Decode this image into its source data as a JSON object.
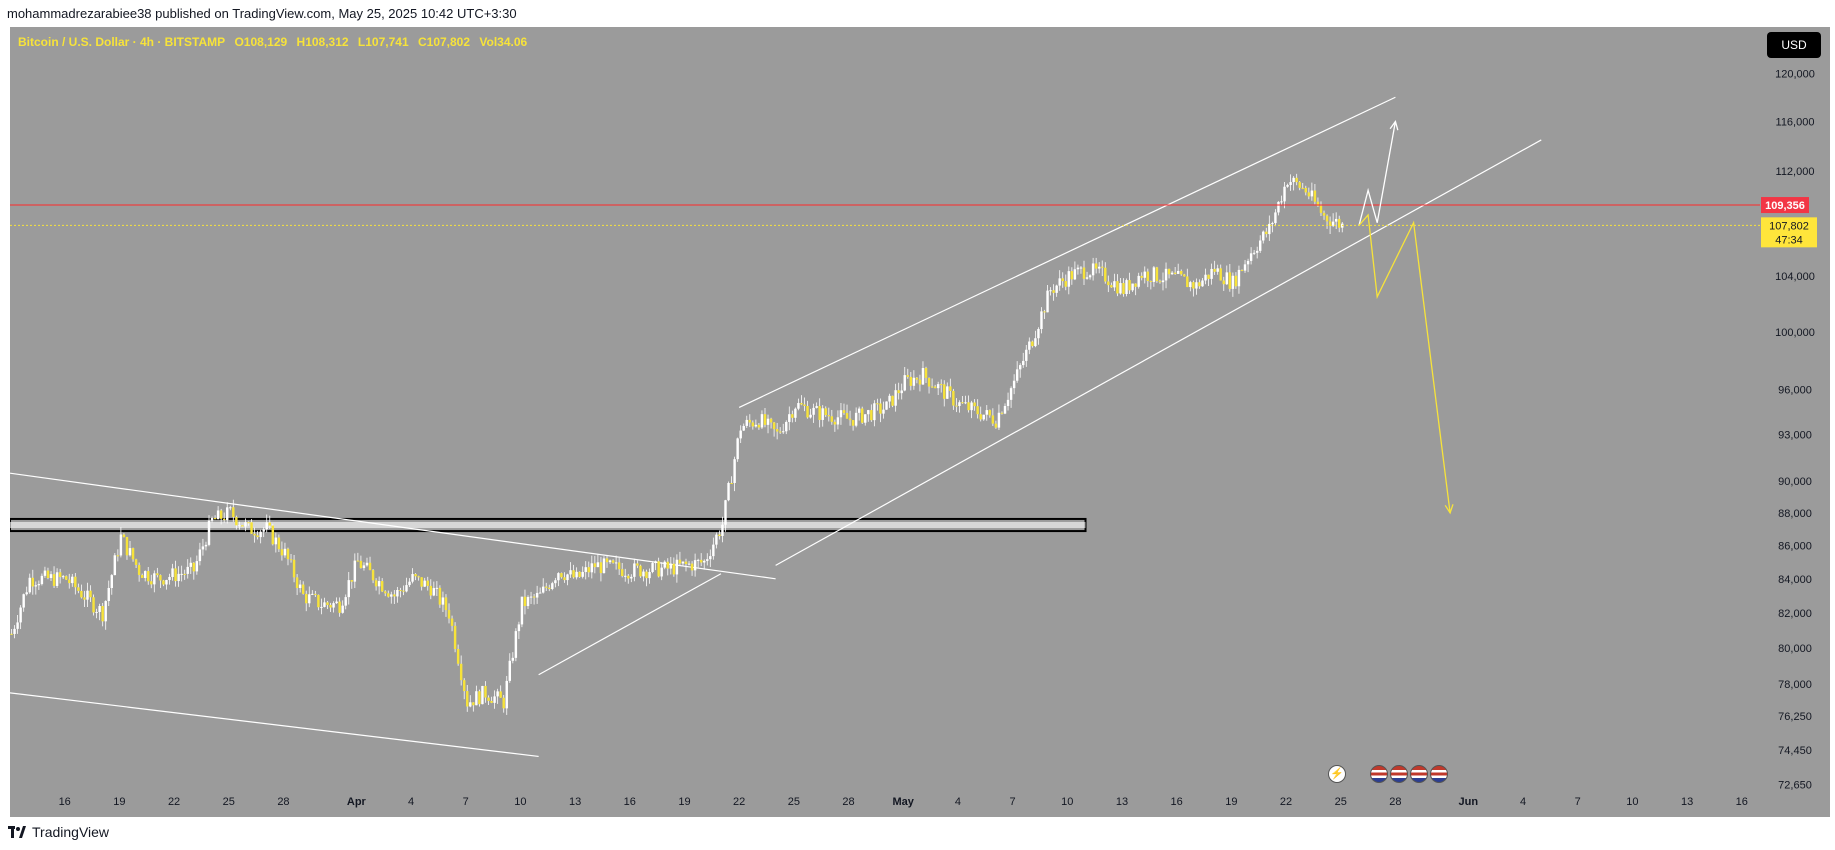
{
  "header": {
    "published": "mohammadrezarabiee38 published on TradingView.com, May 25, 2025 10:42 UTC+3:30"
  },
  "legend": {
    "symbol": "Bitcoin / U.S. Dollar · 4h · BITSTAMP",
    "open": "O108,129",
    "high": "H108,312",
    "low": "L107,741",
    "close": "C107,802",
    "vol": "Vol34.06"
  },
  "currency_button": "USD",
  "footer": {
    "brand": "TradingView"
  },
  "colors": {
    "background": "#9b9b9b",
    "candle": "#f7e33a",
    "candle_wick": "#ffffff",
    "red_line": "#ff2a2a",
    "price_badge": "#ffe53b",
    "red_badge": "#f23645",
    "channel": "#ffffff"
  },
  "events": [
    "lightning-icon",
    "us-flag-icon",
    "us-flag-icon",
    "us-flag-icon",
    "us-flag-icon"
  ],
  "chart_data": {
    "type": "candlestick",
    "timeframe": "4h",
    "y_axis": {
      "ticks": [
        72650,
        74450,
        76250,
        78000,
        80000,
        82000,
        84000,
        86000,
        88000,
        90000,
        93000,
        96000,
        100000,
        104000,
        112000,
        116000,
        120000
      ],
      "tick_labels": [
        "72,650",
        "74,450",
        "76,250",
        "78,000",
        "80,000",
        "82,000",
        "84,000",
        "86,000",
        "88,000",
        "90,000",
        "93,000",
        "96,000",
        "100,000",
        "104,000",
        "112,000",
        "116,000",
        "120,000"
      ],
      "scale": "log",
      "range": [
        71000,
        124000
      ]
    },
    "x_axis": {
      "range": [
        "2025-03-13",
        "2025-06-17"
      ],
      "ticks": [
        {
          "date": "2025-03-16",
          "label": "16"
        },
        {
          "date": "2025-03-19",
          "label": "19"
        },
        {
          "date": "2025-03-22",
          "label": "22"
        },
        {
          "date": "2025-03-25",
          "label": "25"
        },
        {
          "date": "2025-03-28",
          "label": "28"
        },
        {
          "date": "2025-04-01",
          "label": "Apr"
        },
        {
          "date": "2025-04-04",
          "label": "4"
        },
        {
          "date": "2025-04-07",
          "label": "7"
        },
        {
          "date": "2025-04-10",
          "label": "10"
        },
        {
          "date": "2025-04-13",
          "label": "13"
        },
        {
          "date": "2025-04-16",
          "label": "16"
        },
        {
          "date": "2025-04-19",
          "label": "19"
        },
        {
          "date": "2025-04-22",
          "label": "22"
        },
        {
          "date": "2025-04-25",
          "label": "25"
        },
        {
          "date": "2025-04-28",
          "label": "28"
        },
        {
          "date": "2025-05-01",
          "label": "May"
        },
        {
          "date": "2025-05-04",
          "label": "4"
        },
        {
          "date": "2025-05-07",
          "label": "7"
        },
        {
          "date": "2025-05-10",
          "label": "10"
        },
        {
          "date": "2025-05-13",
          "label": "13"
        },
        {
          "date": "2025-05-16",
          "label": "16"
        },
        {
          "date": "2025-05-19",
          "label": "19"
        },
        {
          "date": "2025-05-22",
          "label": "22"
        },
        {
          "date": "2025-05-25",
          "label": "25"
        },
        {
          "date": "2025-05-28",
          "label": "28"
        },
        {
          "date": "2025-06-01",
          "label": "Jun"
        },
        {
          "date": "2025-06-04",
          "label": "4"
        },
        {
          "date": "2025-06-07",
          "label": "7"
        },
        {
          "date": "2025-06-10",
          "label": "10"
        },
        {
          "date": "2025-06-13",
          "label": "13"
        },
        {
          "date": "2025-06-16",
          "label": "16"
        }
      ]
    },
    "price_path": [
      [
        "2025-03-13",
        80800
      ],
      [
        "2025-03-14",
        84000
      ],
      [
        "2025-03-16",
        84000
      ],
      [
        "2025-03-17",
        83000
      ],
      [
        "2025-03-18",
        82000
      ],
      [
        "2025-03-19",
        86500
      ],
      [
        "2025-03-20",
        84500
      ],
      [
        "2025-03-21",
        84000
      ],
      [
        "2025-03-23",
        84500
      ],
      [
        "2025-03-24",
        87500
      ],
      [
        "2025-03-25",
        88000
      ],
      [
        "2025-03-26",
        87000
      ],
      [
        "2025-03-27",
        87000
      ],
      [
        "2025-03-28",
        85500
      ],
      [
        "2025-03-29",
        83000
      ],
      [
        "2025-03-30",
        82500
      ],
      [
        "2025-03-31",
        82500
      ],
      [
        "2025-04-01",
        85000
      ],
      [
        "2025-04-02",
        84000
      ],
      [
        "2025-04-03",
        83000
      ],
      [
        "2025-04-04",
        84000
      ],
      [
        "2025-04-05",
        83500
      ],
      [
        "2025-04-06",
        82000
      ],
      [
        "2025-04-07",
        77000
      ],
      [
        "2025-04-08",
        77500
      ],
      [
        "2025-04-09",
        77000
      ],
      [
        "2025-04-10",
        82500
      ],
      [
        "2025-04-11",
        83000
      ],
      [
        "2025-04-12",
        84500
      ],
      [
        "2025-04-13",
        84000
      ],
      [
        "2025-04-14",
        84800
      ],
      [
        "2025-04-16",
        84500
      ],
      [
        "2025-04-18",
        84600
      ],
      [
        "2025-04-20",
        85000
      ],
      [
        "2025-04-21",
        87300
      ],
      [
        "2025-04-22",
        93500
      ],
      [
        "2025-04-23",
        94000
      ],
      [
        "2025-04-24",
        93000
      ],
      [
        "2025-04-25",
        95000
      ],
      [
        "2025-04-26",
        94500
      ],
      [
        "2025-04-28",
        94000
      ],
      [
        "2025-04-30",
        94800
      ],
      [
        "2025-05-01",
        96500
      ],
      [
        "2025-05-02",
        97000
      ],
      [
        "2025-05-04",
        95000
      ],
      [
        "2025-05-06",
        94000
      ],
      [
        "2025-05-07",
        96500
      ],
      [
        "2025-05-08",
        99500
      ],
      [
        "2025-05-09",
        103000
      ],
      [
        "2025-05-10",
        104000
      ],
      [
        "2025-05-11",
        104500
      ],
      [
        "2025-05-12",
        104000
      ],
      [
        "2025-05-13",
        103000
      ],
      [
        "2025-05-14",
        104200
      ],
      [
        "2025-05-16",
        103800
      ],
      [
        "2025-05-17",
        103300
      ],
      [
        "2025-05-18",
        104500
      ],
      [
        "2025-05-19",
        103500
      ],
      [
        "2025-05-20",
        105800
      ],
      [
        "2025-05-21",
        107500
      ],
      [
        "2025-05-22",
        111400
      ],
      [
        "2025-05-23",
        110500
      ],
      [
        "2025-05-24",
        108500
      ],
      [
        "2025-05-25",
        107802
      ]
    ],
    "last_price": {
      "value": 107802,
      "label": "107,802",
      "countdown": "47:34"
    },
    "horizontal_line": {
      "value": 109356,
      "label": "109,356"
    },
    "support_zone": {
      "from": "2025-03-13",
      "to": "2025-05-11",
      "low": 87000,
      "high": 87500
    },
    "trendlines": [
      {
        "from": [
          "2025-03-13",
          90500
        ],
        "to": [
          "2025-04-24",
          84000
        ]
      },
      {
        "from": [
          "2025-03-13",
          77500
        ],
        "to": [
          "2025-04-11",
          74100
        ]
      },
      {
        "from": [
          "2025-04-11",
          78500
        ],
        "to": [
          "2025-04-21",
          84300
        ]
      },
      {
        "from": [
          "2025-04-22",
          94800
        ],
        "to": [
          "2025-05-28",
          118000
        ]
      },
      {
        "from": [
          "2025-04-24",
          84800
        ],
        "to": [
          "2025-06-05",
          114500
        ]
      }
    ],
    "projection_white": [
      [
        "2025-05-26",
        107800
      ],
      [
        "2025-05-26",
        110500
      ],
      [
        "2025-05-27",
        108000
      ],
      [
        "2025-05-28",
        116000
      ]
    ],
    "projection_yellow": [
      [
        "2025-05-26",
        107800
      ],
      [
        "2025-05-26",
        108600
      ],
      [
        "2025-05-27",
        102500
      ],
      [
        "2025-05-29",
        108000
      ],
      [
        "2025-05-31",
        88000
      ]
    ]
  }
}
